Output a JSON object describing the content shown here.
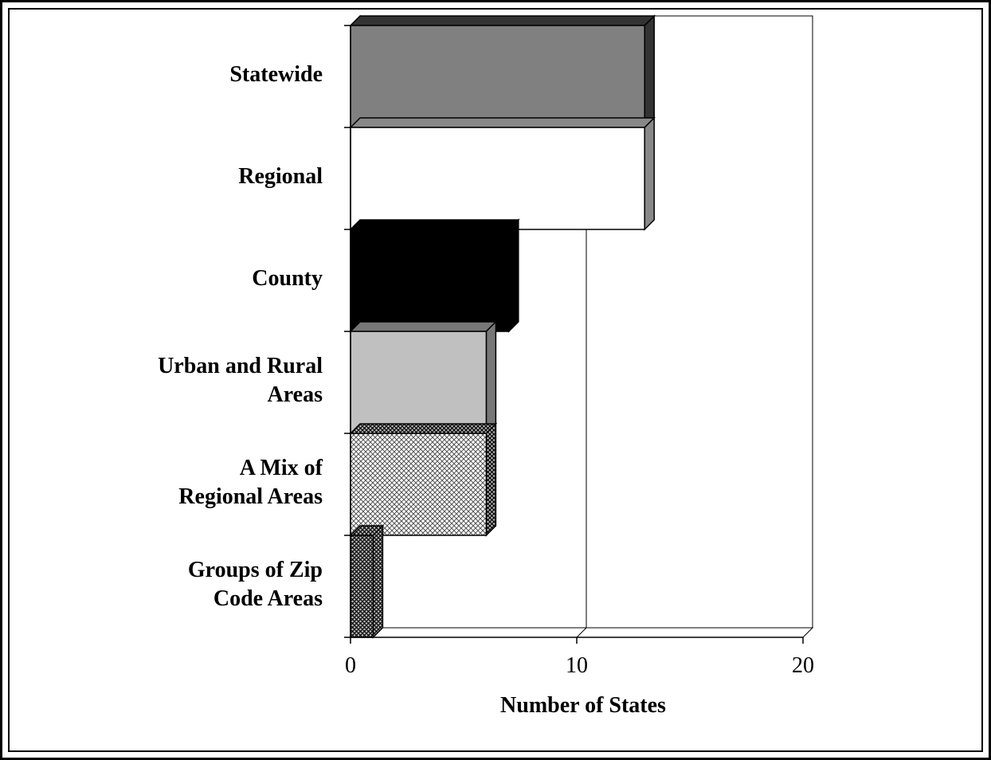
{
  "chart_data": {
    "type": "bar",
    "orientation": "horizontal",
    "style": "3d",
    "categories": [
      "Statewide",
      "Regional",
      "County",
      "Urban and Rural\nAreas",
      "A Mix of\nRegional Areas",
      "Groups of Zip\nCode Areas"
    ],
    "values": [
      13,
      13,
      7,
      6,
      6,
      1
    ],
    "bar_colors": [
      "#808080",
      "#ffffff",
      "#000000",
      "#c0c0c0",
      "pattern-crosshatch-light",
      "pattern-crosshatch-dark"
    ],
    "title": "",
    "xlabel": "Number of States",
    "ylabel": "",
    "xlim": [
      0,
      20
    ],
    "xticks": [
      "0",
      "10",
      "20"
    ],
    "grid": "vertical"
  }
}
